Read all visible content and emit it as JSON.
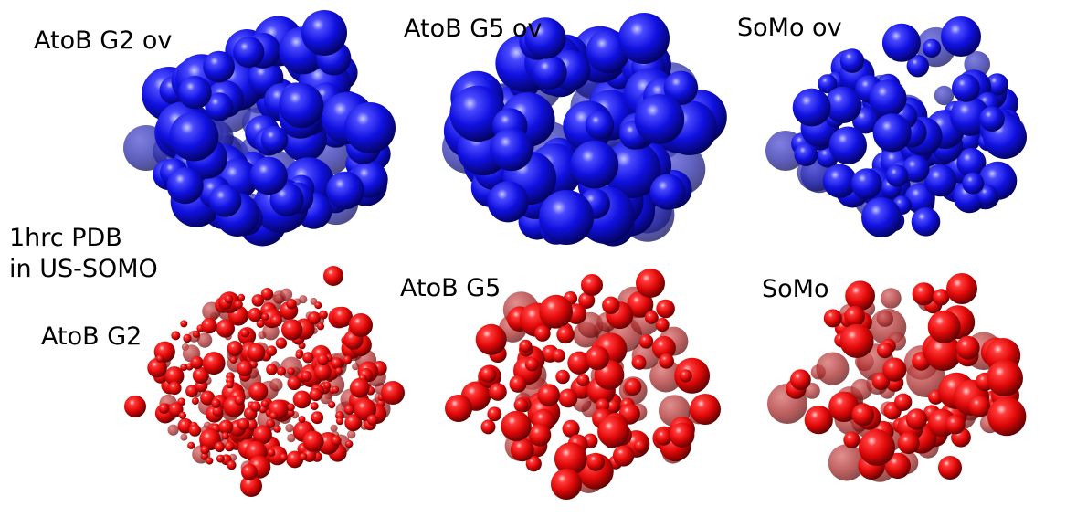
{
  "labels": {
    "blue_1": "AtoB G2 ov",
    "blue_2": "AtoB G5 ov",
    "blue_3": "SoMo ov",
    "pdb_line1": "1hrc PDB",
    "pdb_line2": "in US-SOMO",
    "red_1": "AtoB G2",
    "red_2": "AtoB G5",
    "red_3": "SoMo"
  },
  "colors": {
    "blue_model": "#1414e6",
    "red_model": "#e61010",
    "background": "#ffffff"
  }
}
